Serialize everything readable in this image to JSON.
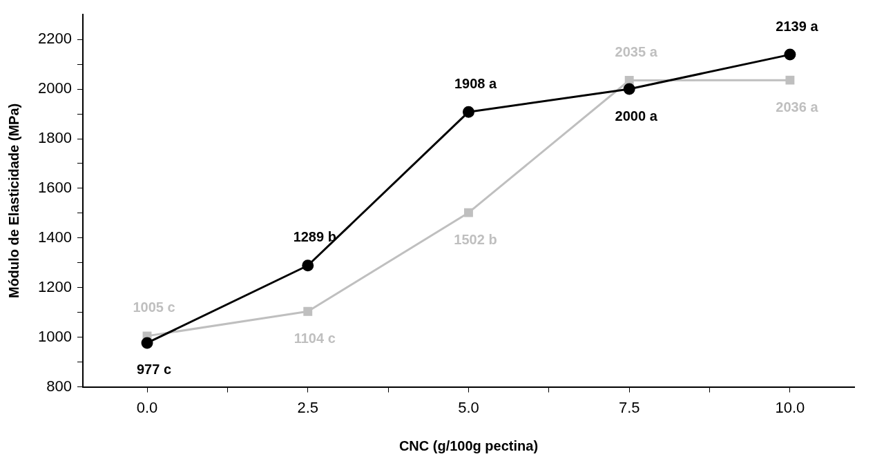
{
  "chart_data": {
    "type": "line",
    "xlabel": "CNC (g/100g pectina)",
    "ylabel": "Módulo de Elasticidade (MPa)",
    "x": [
      0,
      2.5,
      5,
      7.5,
      10
    ],
    "series": [
      {
        "color": "#000000",
        "marker": "circle",
        "values": [
          977,
          1289,
          1908,
          2000,
          2139
        ],
        "value_labels": [
          "977 c",
          "1289 b",
          "1908 a",
          "2000 a",
          "2139 a"
        ]
      },
      {
        "color": "#bfbfbf",
        "marker": "square",
        "values": [
          1005,
          1104,
          1502,
          2035,
          2036
        ],
        "value_labels": [
          "1005 c",
          "1104 c",
          "1502 b",
          "2035 a",
          "2036 a"
        ]
      }
    ],
    "xlim": [
      -1,
      11
    ],
    "xticks": [
      {
        "value": 0,
        "label": "0.0"
      },
      {
        "value": 1.25,
        "label": null
      },
      {
        "value": 2.5,
        "label": "2.5"
      },
      {
        "value": 3.75,
        "label": null
      },
      {
        "value": 5,
        "label": "5.0"
      },
      {
        "value": 6.25,
        "label": null
      },
      {
        "value": 7.5,
        "label": "7.5"
      },
      {
        "value": 8.75,
        "label": null
      },
      {
        "value": 10,
        "label": "10.0"
      }
    ],
    "ylim": [
      800,
      2300
    ],
    "yticks": [
      800,
      {
        "value": 900,
        "label": null
      },
      1000,
      {
        "value": 1100,
        "label": null
      },
      1200,
      {
        "value": 1300,
        "label": null
      },
      1400,
      {
        "value": 1500,
        "label": null
      },
      1600,
      {
        "value": 1700,
        "label": null
      },
      1800,
      {
        "value": 1900,
        "label": null
      },
      2000,
      {
        "value": 2100,
        "label": null
      },
      2200
    ],
    "grid": false,
    "legend": false,
    "line_style": "solid"
  }
}
